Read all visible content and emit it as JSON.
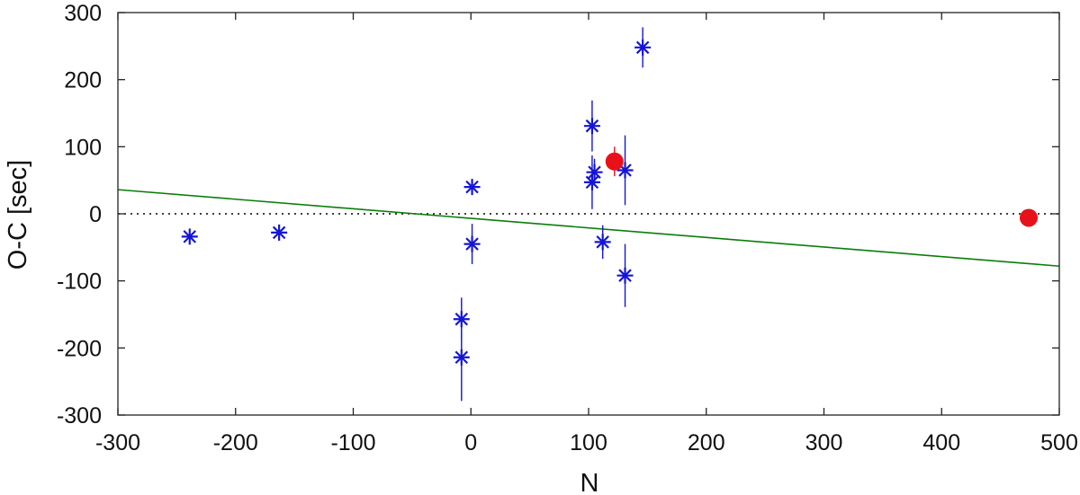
{
  "chart_data": {
    "type": "scatter",
    "title": "",
    "xlabel": "N",
    "ylabel": "O-C [sec]",
    "xlim": [
      -300,
      500
    ],
    "ylim": [
      -300,
      300
    ],
    "xticks": [
      -300,
      -200,
      -100,
      0,
      100,
      200,
      300,
      400,
      500
    ],
    "yticks": [
      -300,
      -200,
      -100,
      0,
      100,
      200,
      300
    ],
    "xtick_labels": [
      "-300",
      "-200",
      "-100",
      "0",
      "100",
      "200",
      "300",
      "400",
      "500"
    ],
    "ytick_labels": [
      "-300",
      "-200",
      "-100",
      "0",
      "100",
      "200",
      "300"
    ],
    "grid": false,
    "zero_line": {
      "y": 0,
      "style": "dotted",
      "color": "#000000"
    },
    "fit_line": {
      "x": [
        -300,
        500
      ],
      "y": [
        36,
        -78
      ],
      "color": "#0a7d0a"
    },
    "series": [
      {
        "marker": "asterisk",
        "color": "#1515d6",
        "points": [
          {
            "x": -239,
            "y": -34,
            "err": 0
          },
          {
            "x": -163,
            "y": -28,
            "err": 0
          },
          {
            "x": -8,
            "y": -157,
            "err": 32
          },
          {
            "x": -8,
            "y": -214,
            "err": 65
          },
          {
            "x": 1,
            "y": 40,
            "err": 0
          },
          {
            "x": 1,
            "y": -45,
            "err": 30
          },
          {
            "x": 103,
            "y": 131,
            "err": 38
          },
          {
            "x": 103,
            "y": 47,
            "err": 40
          },
          {
            "x": 105,
            "y": 62,
            "err": 20
          },
          {
            "x": 112,
            "y": -42,
            "err": 25
          },
          {
            "x": 131,
            "y": 65,
            "err": 52
          },
          {
            "x": 131,
            "y": -92,
            "err": 47
          },
          {
            "x": 146,
            "y": 248,
            "err": 30
          }
        ]
      },
      {
        "marker": "filled-circle",
        "color": "#e8111a",
        "points": [
          {
            "x": 122,
            "y": 78,
            "err": 22
          },
          {
            "x": 474,
            "y": -6,
            "err": 0
          }
        ]
      }
    ]
  }
}
